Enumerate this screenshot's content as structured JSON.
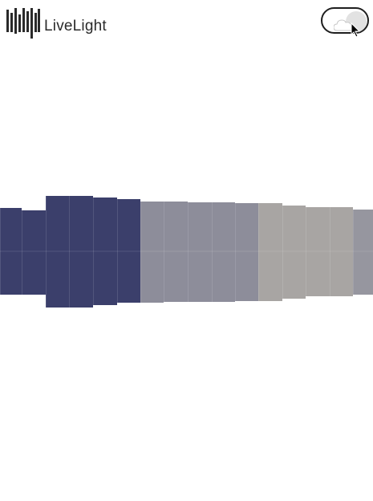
{
  "app": {
    "brand": "LiveLight",
    "logo_icon": "equalizer-bars-icon"
  },
  "header": {
    "toggle_icon": "cloud-moon-icon",
    "toggle_state": "on"
  },
  "visualization": {
    "type": "color-strip",
    "segments": [
      {
        "color": "#3b3f6b"
      },
      {
        "color": "#3b3f6b"
      },
      {
        "color": "#3b3f6b"
      },
      {
        "color": "#3b3f6b"
      },
      {
        "color": "#3b3f6b"
      },
      {
        "color": "#3b3f6b"
      },
      {
        "color": "#8d8d9a"
      },
      {
        "color": "#8d8d9a"
      },
      {
        "color": "#8d8d9a"
      },
      {
        "color": "#8d8d9a"
      },
      {
        "color": "#8d8d9a"
      },
      {
        "color": "#a8a5a3"
      },
      {
        "color": "#a8a5a3"
      },
      {
        "color": "#a8a5a3"
      },
      {
        "color": "#a8a5a3"
      },
      {
        "color": "#96969f"
      }
    ]
  }
}
